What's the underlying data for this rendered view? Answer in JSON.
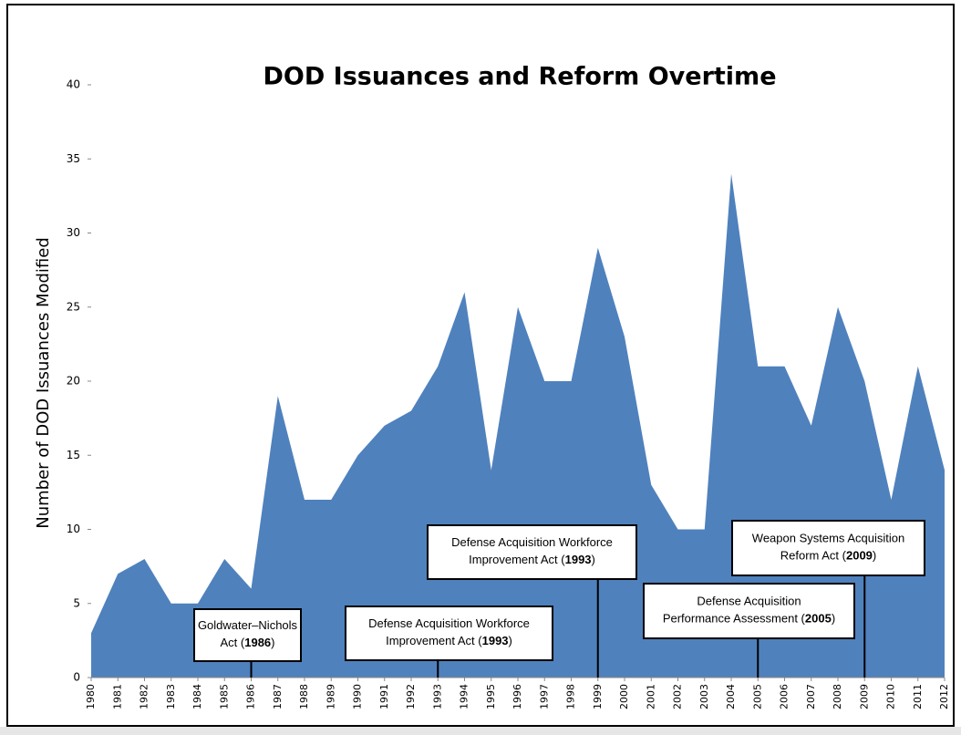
{
  "chart_data": {
    "type": "area",
    "title": "DOD Issuances and Reform Overtime",
    "y_label": "Number of DOD Issuances Modified",
    "x": [
      1980,
      1981,
      1982,
      1983,
      1984,
      1985,
      1986,
      1987,
      1988,
      1989,
      1990,
      1991,
      1992,
      1993,
      1994,
      1995,
      1996,
      1997,
      1998,
      1999,
      2000,
      2001,
      2002,
      2003,
      2004,
      2005,
      2006,
      2007,
      2008,
      2009,
      2010,
      2011,
      2012
    ],
    "values": [
      3,
      7,
      8,
      5,
      5,
      8,
      6,
      19,
      12,
      12,
      15,
      17,
      18,
      21,
      26,
      14,
      25,
      20,
      20,
      29,
      23,
      13,
      10,
      10,
      34,
      21,
      21,
      17,
      25,
      20,
      12,
      21,
      14
    ],
    "color": "#4f81bd",
    "xlim": [
      1980,
      2012
    ],
    "ylim": [
      0,
      40
    ],
    "yticks": [
      0,
      5,
      10,
      15,
      20,
      25,
      30,
      35,
      40
    ],
    "annotations": [
      {
        "x": 1986,
        "lines": [
          [
            "Goldwater–Nichols"
          ],
          [
            "Act (",
            "1986",
            ")"
          ]
        ]
      },
      {
        "x": 1993,
        "lines": [
          [
            "Defense Acquisition Workforce"
          ],
          [
            "Improvement Act (",
            "1993",
            ")"
          ]
        ]
      },
      {
        "x": 1999,
        "lines": [
          [
            "Defense Acquisition Workforce"
          ],
          [
            "Improvement Act (",
            "1993",
            ")"
          ]
        ]
      },
      {
        "x": 2005,
        "lines": [
          [
            "Defense Acquisition"
          ],
          [
            "Performance Assessment (",
            "2005",
            ")"
          ]
        ]
      },
      {
        "x": 2009,
        "lines": [
          [
            "Weapon Systems Acquisition"
          ],
          [
            "Reform Act (",
            "2009",
            ")"
          ]
        ]
      }
    ]
  }
}
